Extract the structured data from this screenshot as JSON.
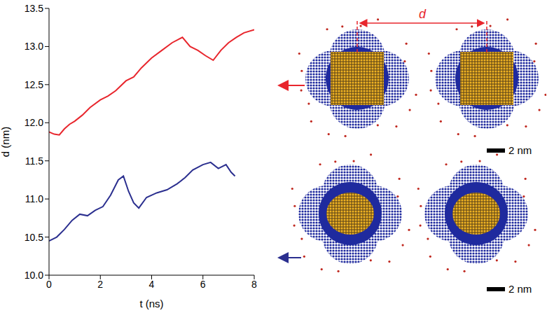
{
  "chart_data": {
    "type": "line",
    "xlabel": "t (ns)",
    "ylabel": "d (nm)",
    "xlim": [
      0,
      8
    ],
    "xticks": [
      0,
      2,
      4,
      6,
      8
    ],
    "ylim": [
      10,
      13.5
    ],
    "yticks": [
      {
        "value": 10,
        "label": "10.0"
      },
      10.5,
      {
        "value": 11,
        "label": "11.0"
      },
      11.5,
      {
        "value": 12,
        "label": "12.0"
      },
      12.5,
      {
        "value": 13,
        "label": "13.0"
      },
      13.5
    ],
    "grid": false,
    "series": [
      {
        "color": "#e8262d",
        "x": [
          0,
          0.2,
          0.4,
          0.6,
          0.8,
          1.0,
          1.3,
          1.6,
          2.0,
          2.3,
          2.6,
          3.0,
          3.3,
          3.6,
          4.0,
          4.4,
          4.8,
          5.2,
          5.5,
          5.8,
          6.1,
          6.4,
          6.7,
          7.0,
          7.3,
          7.6,
          8.0
        ],
        "values": [
          11.88,
          11.85,
          11.84,
          11.92,
          11.98,
          12.02,
          12.1,
          12.2,
          12.3,
          12.35,
          12.42,
          12.55,
          12.6,
          12.72,
          12.85,
          12.95,
          13.05,
          13.12,
          13.0,
          12.95,
          12.88,
          12.82,
          12.95,
          13.05,
          13.12,
          13.18,
          13.22
        ]
      },
      {
        "color": "#2b2f8f",
        "x": [
          0,
          0.3,
          0.6,
          0.9,
          1.2,
          1.5,
          1.8,
          2.1,
          2.4,
          2.7,
          2.9,
          3.1,
          3.3,
          3.5,
          3.8,
          4.2,
          4.6,
          5.0,
          5.3,
          5.6,
          6.0,
          6.3,
          6.6,
          6.9,
          7.1,
          7.25
        ],
        "values": [
          10.45,
          10.5,
          10.6,
          10.72,
          10.8,
          10.78,
          10.85,
          10.9,
          11.05,
          11.25,
          11.3,
          11.1,
          10.95,
          10.88,
          11.02,
          11.08,
          11.12,
          11.2,
          11.28,
          11.38,
          11.45,
          11.48,
          11.4,
          11.45,
          11.35,
          11.3
        ]
      }
    ],
    "annotations": {
      "distance_label": "d",
      "scale_labels": [
        "2 nm",
        "2 nm"
      ]
    }
  }
}
